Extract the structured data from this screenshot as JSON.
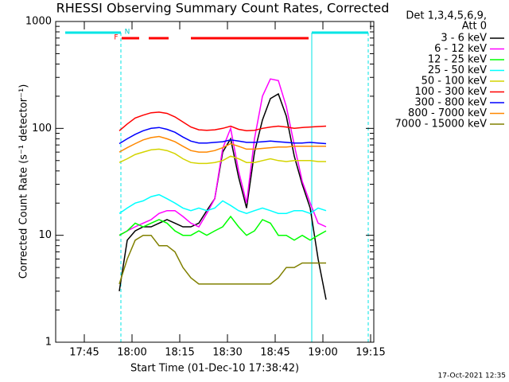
{
  "chart_data": {
    "type": "line",
    "title": "RHESSI Observing Summary Count Rates, Corrected",
    "xlabel": "Start Time (01-Dec-10 17:38:42)",
    "ylabel": "Corrected Count Rate (s⁻¹ detector⁻¹)",
    "legend_title": [
      "Det 1,3,4,5,6,9,",
      "Att 0"
    ],
    "footer": "17-Oct-2021 12:35",
    "annotations": [
      "F",
      "N"
    ],
    "log_y": true,
    "legend": "right",
    "xlim": [
      1056,
      1156
    ],
    "xticks": [
      {
        "value": 1065,
        "label": "17:45"
      },
      {
        "value": 1080,
        "label": "18:00"
      },
      {
        "value": 1095,
        "label": "18:15"
      },
      {
        "value": 1110,
        "label": "18:30"
      },
      {
        "value": 1125,
        "label": "18:45"
      },
      {
        "value": 1140,
        "label": "19:00"
      },
      {
        "value": 1155,
        "label": "19:15"
      }
    ],
    "ylim": [
      1,
      1000
    ],
    "yticks": [
      1,
      10,
      100,
      1000
    ],
    "yminorticks": [
      2,
      3,
      4,
      5,
      6,
      7,
      8,
      9,
      20,
      30,
      40,
      50,
      60,
      70,
      80,
      90,
      200,
      300,
      400,
      500,
      600,
      700,
      800,
      900
    ],
    "x": [
      1076,
      1078.5,
      1081,
      1083.5,
      1086,
      1088.5,
      1091,
      1093.5,
      1096,
      1098.5,
      1101,
      1103.5,
      1106,
      1108.5,
      1111,
      1113.5,
      1116,
      1118.5,
      1121,
      1123.5,
      1126,
      1128.5,
      1131,
      1133.5,
      1136,
      1138.5,
      1141
    ],
    "series": [
      {
        "name": "3 - 6 keV",
        "color": "#000000",
        "values": [
          3,
          9,
          11,
          12,
          12,
          13,
          14,
          13,
          12,
          12,
          13,
          17,
          22,
          60,
          80,
          35,
          18,
          60,
          120,
          190,
          210,
          130,
          55,
          30,
          18,
          6,
          2.5
        ]
      },
      {
        "name": "6 - 12 keV",
        "color": "#ff00ff",
        "values": [
          10,
          11,
          12,
          13,
          14,
          16,
          17,
          17,
          15,
          13,
          12,
          16,
          22,
          65,
          100,
          40,
          20,
          80,
          200,
          290,
          280,
          160,
          70,
          32,
          20,
          13,
          12
        ]
      },
      {
        "name": "12 - 25 keV",
        "color": "#00ff00",
        "values": [
          10,
          11,
          13,
          12,
          13,
          14,
          13,
          11,
          10,
          10,
          11,
          10,
          11,
          12,
          15,
          12,
          10,
          11,
          14,
          13,
          10,
          10,
          9,
          10,
          9,
          10,
          11
        ]
      },
      {
        "name": "25 - 50 keV",
        "color": "#00ffff",
        "values": [
          16,
          18,
          20,
          21,
          23,
          24,
          22,
          20,
          18,
          17,
          18,
          17,
          18,
          21,
          19,
          17,
          16,
          17,
          18,
          17,
          16,
          16,
          17,
          17,
          16,
          18,
          17
        ]
      },
      {
        "name": "50 - 100 keV",
        "color": "#d4d400",
        "values": [
          48,
          52,
          57,
          60,
          63,
          64,
          62,
          58,
          52,
          48,
          47,
          47,
          48,
          50,
          55,
          52,
          48,
          48,
          50,
          52,
          50,
          49,
          50,
          50,
          50,
          49,
          49
        ]
      },
      {
        "name": "100 - 300 keV",
        "color": "#ff0000",
        "values": [
          95,
          110,
          125,
          133,
          140,
          142,
          138,
          128,
          115,
          103,
          97,
          96,
          97,
          100,
          105,
          98,
          95,
          96,
          100,
          103,
          105,
          103,
          100,
          102,
          103,
          104,
          105
        ]
      },
      {
        "name": "300 - 800 keV",
        "color": "#0000ff",
        "values": [
          72,
          80,
          88,
          95,
          100,
          102,
          98,
          92,
          83,
          76,
          73,
          73,
          74,
          75,
          78,
          76,
          74,
          74,
          75,
          76,
          75,
          74,
          73,
          73,
          74,
          73,
          72
        ]
      },
      {
        "name": "800 - 7000 keV",
        "color": "#ff8800",
        "values": [
          60,
          66,
          72,
          78,
          82,
          84,
          80,
          75,
          68,
          62,
          60,
          60,
          62,
          66,
          72,
          68,
          64,
          64,
          65,
          66,
          67,
          67,
          68,
          68,
          68,
          68,
          68
        ]
      },
      {
        "name": "7000 - 15000 keV",
        "color": "#808000",
        "values": [
          3.5,
          6,
          9,
          10,
          10,
          8,
          8,
          7,
          5,
          4,
          3.5,
          3.5,
          3.5,
          3.5,
          3.5,
          3.5,
          3.5,
          3.5,
          3.5,
          3.5,
          4,
          5,
          5,
          5.5,
          5.5,
          5.5,
          5.5
        ]
      }
    ]
  }
}
